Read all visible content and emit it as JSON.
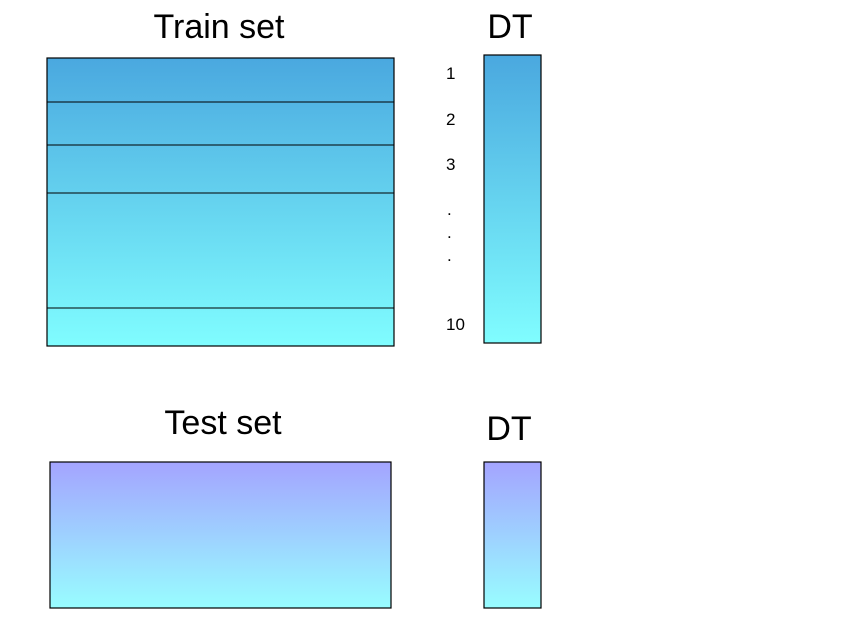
{
  "train": {
    "title": "Train set",
    "model_title": "DT",
    "index_labels": [
      "1",
      "2",
      "3",
      "10"
    ],
    "dots": [
      ".",
      ".",
      "."
    ]
  },
  "test": {
    "title": "Test set",
    "model_title": "DT"
  },
  "colors": {
    "train_gradient_top": "#4aa8df",
    "train_gradient_bottom": "#80fdff",
    "test_gradient_top": "#a4a4ff",
    "test_gradient_bottom": "#98fdff",
    "border": "#000000"
  }
}
